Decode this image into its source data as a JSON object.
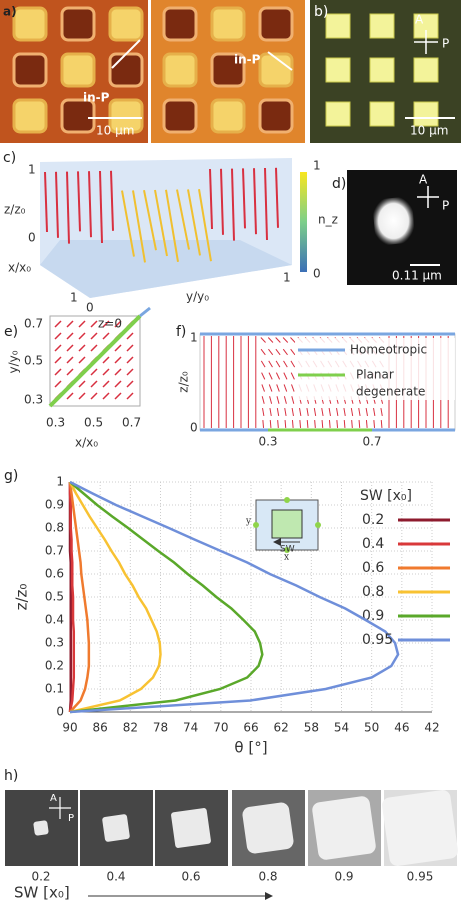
{
  "panels": {
    "a": {
      "label": "a)",
      "arrow_left": "in-P",
      "arrow_right": "in-P",
      "scale": "10 μm"
    },
    "b": {
      "label": "b)",
      "analyzer": "A",
      "polarizer": "P",
      "scale": "10 μm"
    },
    "c": {
      "label": "c)",
      "z_label": "z/z₀",
      "z_top": "1",
      "z_bottom": "0",
      "x_label": "x/x₀",
      "x_start": "1",
      "x_end": "0",
      "y_label": "y/y₀",
      "y_end": "1",
      "colorbar_label": "n_z",
      "colorbar_top": "1",
      "colorbar_bottom": "0"
    },
    "d": {
      "label": "d)",
      "analyzer": "A",
      "polarizer": "P",
      "scale": "0.11 μm"
    },
    "e": {
      "label": "e)",
      "annotation": "z=0",
      "yticks": [
        "0.7",
        "0.5",
        "0.3"
      ],
      "xticks": [
        "0.3",
        "0.5",
        "0.7"
      ],
      "x_label": "x/x₀",
      "y_label": "y/y₀"
    },
    "f": {
      "label": "f)",
      "y_top": "1",
      "y_bottom": "0",
      "y_label": "z/z₀",
      "xticks": [
        "0.3",
        "0.7"
      ],
      "legend": [
        "Homeotropic",
        [
          "Planar",
          "degenerate"
        ]
      ]
    },
    "h": {
      "label": "h)",
      "analyzer": "A",
      "polarizer": "P",
      "samples": [
        "0.2",
        "0.4",
        "0.6",
        "0.8",
        "0.9",
        "0.95"
      ],
      "axis_label": "SW [x₀]"
    }
  },
  "chart_data": {
    "type": "line",
    "label": "g)",
    "x_label": "θ [°]",
    "y_label": "z/z₀",
    "legend_title": "SW [x₀]",
    "inset_labels": {
      "left": "y",
      "bottom_arrow": "SW",
      "bottom": "x"
    },
    "x": [
      0,
      0.05,
      0.1,
      0.15,
      0.2,
      0.25,
      0.3,
      0.35,
      0.4,
      0.45,
      0.5,
      0.55,
      0.6,
      0.65,
      0.7,
      0.75,
      0.8,
      0.85,
      0.9,
      0.95,
      1
    ],
    "series": [
      {
        "name": "0.2",
        "color": "#8e1b2e",
        "values": [
          90,
          89.9,
          89.9,
          89.9,
          89.9,
          89.9,
          89.9,
          89.9,
          89.9,
          89.9,
          89.9,
          89.9,
          89.9,
          89.9,
          90,
          90,
          90,
          90,
          90,
          90,
          90
        ]
      },
      {
        "name": "0.4",
        "color": "#d9383a",
        "values": [
          90,
          89.7,
          89.6,
          89.5,
          89.5,
          89.5,
          89.5,
          89.5,
          89.6,
          89.6,
          89.6,
          89.7,
          89.7,
          89.7,
          89.8,
          89.8,
          89.9,
          89.9,
          89.9,
          90,
          90
        ]
      },
      {
        "name": "0.6",
        "color": "#f07a2e",
        "values": [
          90,
          88.6,
          88.0,
          87.7,
          87.5,
          87.5,
          87.5,
          87.6,
          87.7,
          87.9,
          88.1,
          88.3,
          88.5,
          88.6,
          88.8,
          89.0,
          89.2,
          89.4,
          89.6,
          89.8,
          90
        ]
      },
      {
        "name": "0.8",
        "color": "#f8c232",
        "values": [
          90,
          83.4,
          80.6,
          79.0,
          78.2,
          78,
          78.1,
          78.5,
          79.2,
          79.9,
          80.9,
          81.7,
          82.7,
          83.5,
          84.5,
          85.4,
          86.4,
          87.4,
          88.3,
          89.2,
          90
        ]
      },
      {
        "name": "0.9",
        "color": "#5aa82a",
        "values": [
          90,
          76.0,
          70.1,
          66.5,
          65.0,
          64.5,
          64.8,
          65.5,
          67.0,
          68.6,
          70.6,
          72.4,
          74.4,
          76.2,
          78.3,
          80.3,
          82.3,
          84.4,
          86.4,
          88.2,
          90
        ]
      },
      {
        "name": "0.95",
        "color": "#6f8fda",
        "values": [
          90,
          66.1,
          56.1,
          50.0,
          47.4,
          46.5,
          46.9,
          48.2,
          50.8,
          53.5,
          56.9,
          60.0,
          63.5,
          66.5,
          70.0,
          73.5,
          76.9,
          80.4,
          83.9,
          87.0,
          90
        ]
      }
    ],
    "xlim": [
      90,
      42
    ],
    "xticks": [
      90,
      86,
      82,
      78,
      74,
      70,
      66,
      62,
      58,
      54,
      50,
      46,
      42
    ],
    "ylim": [
      0,
      1
    ],
    "yticks": [
      0,
      0.1,
      0.2,
      0.3,
      0.4,
      0.5,
      0.6,
      0.7,
      0.8,
      0.9,
      1
    ],
    "grid": true
  }
}
